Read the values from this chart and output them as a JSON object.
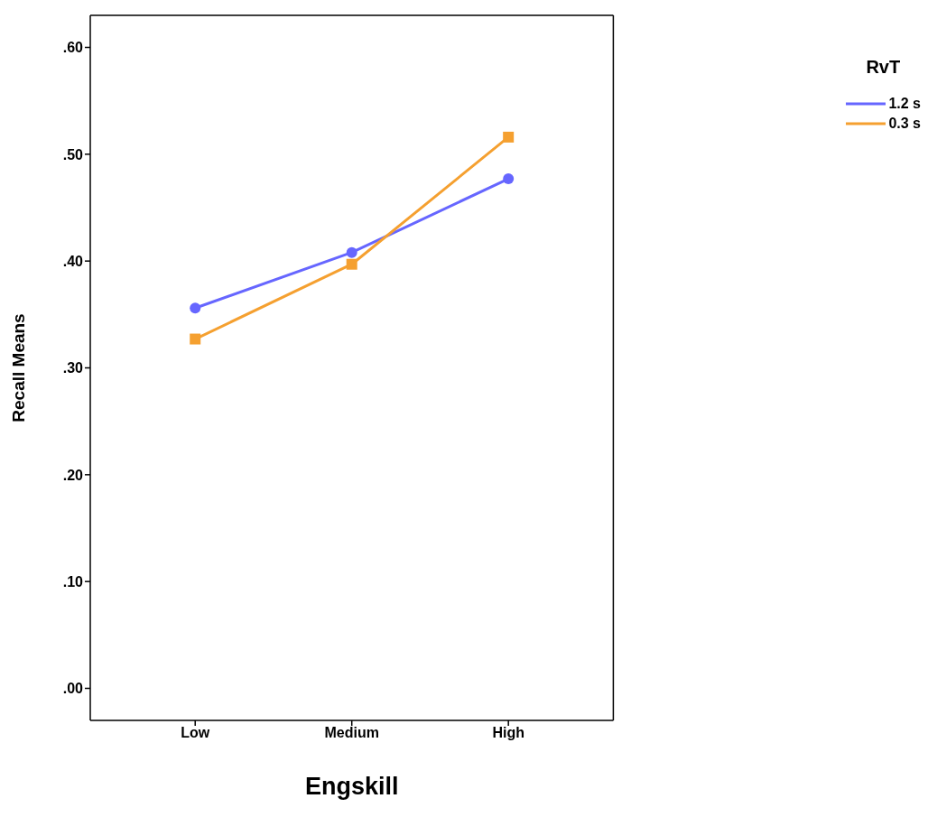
{
  "chart_data": {
    "type": "line",
    "xlabel": "Engskill",
    "ylabel": "Recall Means",
    "legend_title": "RvT",
    "categories": [
      "Low",
      "Medium",
      "High"
    ],
    "series": [
      {
        "name": "1.2 s",
        "color": "#6666ff",
        "marker": "circle",
        "values": [
          0.356,
          0.408,
          0.477
        ]
      },
      {
        "name": "0.3 s",
        "color": "#f5a030",
        "marker": "square",
        "values": [
          0.327,
          0.397,
          0.516
        ]
      }
    ],
    "ylim": [
      -0.03,
      0.63
    ],
    "yticks": [
      {
        "value": 0,
        "label": ".00"
      },
      {
        "value": 0.1,
        "label": ".10"
      },
      {
        "value": 0.2,
        "label": ".20"
      },
      {
        "value": 0.3,
        "label": ".30"
      },
      {
        "value": 0.4,
        "label": ".40"
      },
      {
        "value": 0.5,
        "label": ".50"
      },
      {
        "value": 0.6,
        "label": ".60"
      }
    ],
    "grid": false,
    "legend": "top right",
    "line_style": "solid"
  }
}
